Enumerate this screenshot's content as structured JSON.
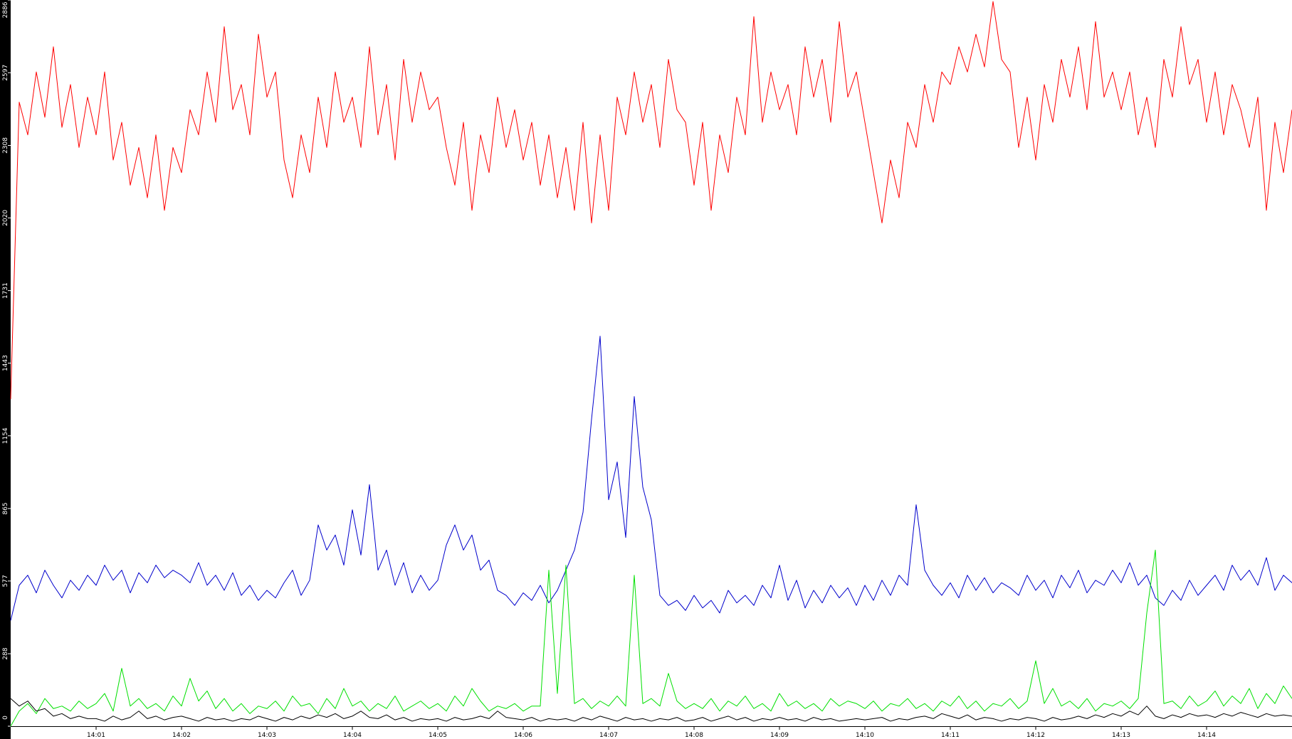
{
  "chart_data": {
    "type": "line",
    "xlim": [
      840,
      855
    ],
    "xticks": [
      {
        "value": 841,
        "label": "14:01"
      },
      {
        "value": 842,
        "label": "14:02"
      },
      {
        "value": 843,
        "label": "14:03"
      },
      {
        "value": 844,
        "label": "14:04"
      },
      {
        "value": 845,
        "label": "14:05"
      },
      {
        "value": 846,
        "label": "14:06"
      },
      {
        "value": 847,
        "label": "14:07"
      },
      {
        "value": 848,
        "label": "14:08"
      },
      {
        "value": 849,
        "label": "14:09"
      },
      {
        "value": 850,
        "label": "14:10"
      },
      {
        "value": 851,
        "label": "14:11"
      },
      {
        "value": 852,
        "label": "14:12"
      },
      {
        "value": 853,
        "label": "14:13"
      },
      {
        "value": 854,
        "label": "14:14"
      }
    ],
    "ylim": [
      0,
      2886
    ],
    "yticks": [
      0,
      288,
      577,
      865,
      1154,
      1443,
      1731,
      2020,
      2308,
      2597,
      2886
    ],
    "x": [
      840.0,
      840.1,
      840.2,
      840.3,
      840.4,
      840.5,
      840.6,
      840.7,
      840.8,
      840.9,
      841.0,
      841.1,
      841.2,
      841.3,
      841.4,
      841.5,
      841.6,
      841.7,
      841.8,
      841.9,
      842.0,
      842.1,
      842.2,
      842.3,
      842.4,
      842.5,
      842.6,
      842.7,
      842.8,
      842.9,
      843.0,
      843.1,
      843.2,
      843.3,
      843.4,
      843.5,
      843.6,
      843.7,
      843.8,
      843.9,
      844.0,
      844.1,
      844.2,
      844.3,
      844.4,
      844.5,
      844.6,
      844.7,
      844.8,
      844.9,
      845.0,
      845.1,
      845.2,
      845.3,
      845.4,
      845.5,
      845.6,
      845.7,
      845.8,
      845.9,
      846.0,
      846.1,
      846.2,
      846.3,
      846.4,
      846.5,
      846.6,
      846.7,
      846.8,
      846.9,
      847.0,
      847.1,
      847.2,
      847.3,
      847.4,
      847.5,
      847.6,
      847.7,
      847.8,
      847.9,
      848.0,
      848.1,
      848.2,
      848.3,
      848.4,
      848.5,
      848.6,
      848.7,
      848.8,
      848.9,
      849.0,
      849.1,
      849.2,
      849.3,
      849.4,
      849.5,
      849.6,
      849.7,
      849.8,
      849.9,
      850.0,
      850.1,
      850.2,
      850.3,
      850.4,
      850.5,
      850.6,
      850.7,
      850.8,
      850.9,
      851.0,
      851.1,
      851.2,
      851.3,
      851.4,
      851.5,
      851.6,
      851.7,
      851.8,
      851.9,
      852.0,
      852.1,
      852.2,
      852.3,
      852.4,
      852.5,
      852.6,
      852.7,
      852.8,
      852.9,
      853.0,
      853.1,
      853.2,
      853.3,
      853.4,
      853.5,
      853.6,
      853.7,
      853.8,
      853.9,
      854.0,
      854.1,
      854.2,
      854.3,
      854.4,
      854.5,
      854.6,
      854.7,
      854.8,
      854.9,
      855.0
    ],
    "series": [
      {
        "color": "#ff0000",
        "values": [
          1300,
          2480,
          2350,
          2600,
          2420,
          2700,
          2380,
          2550,
          2300,
          2500,
          2350,
          2600,
          2250,
          2400,
          2150,
          2300,
          2100,
          2350,
          2050,
          2300,
          2200,
          2450,
          2350,
          2600,
          2400,
          2780,
          2450,
          2550,
          2350,
          2750,
          2500,
          2600,
          2250,
          2100,
          2350,
          2200,
          2500,
          2300,
          2600,
          2400,
          2500,
          2300,
          2700,
          2350,
          2550,
          2250,
          2650,
          2400,
          2600,
          2450,
          2500,
          2300,
          2150,
          2400,
          2050,
          2350,
          2200,
          2500,
          2300,
          2450,
          2250,
          2400,
          2150,
          2350,
          2100,
          2300,
          2050,
          2400,
          2000,
          2350,
          2050,
          2500,
          2350,
          2600,
          2400,
          2550,
          2300,
          2650,
          2450,
          2400,
          2150,
          2400,
          2050,
          2350,
          2200,
          2500,
          2350,
          2820,
          2400,
          2600,
          2450,
          2550,
          2350,
          2700,
          2500,
          2650,
          2400,
          2800,
          2500,
          2600,
          2400,
          2200,
          2000,
          2250,
          2100,
          2400,
          2300,
          2550,
          2400,
          2600,
          2550,
          2700,
          2600,
          2750,
          2620,
          2880,
          2650,
          2600,
          2300,
          2500,
          2250,
          2550,
          2400,
          2650,
          2500,
          2700,
          2450,
          2800,
          2500,
          2600,
          2450,
          2600,
          2350,
          2500,
          2300,
          2650,
          2500,
          2780,
          2550,
          2650,
          2400,
          2600,
          2350,
          2550,
          2450,
          2300,
          2500,
          2050,
          2400,
          2200,
          2450
        ]
      },
      {
        "color": "#0000cc",
        "values": [
          420,
          560,
          600,
          530,
          620,
          560,
          510,
          580,
          540,
          600,
          560,
          640,
          580,
          620,
          530,
          610,
          570,
          640,
          590,
          620,
          600,
          570,
          650,
          560,
          600,
          540,
          610,
          520,
          560,
          500,
          540,
          510,
          570,
          620,
          520,
          580,
          800,
          700,
          760,
          640,
          860,
          680,
          960,
          620,
          700,
          560,
          650,
          530,
          600,
          540,
          580,
          720,
          800,
          700,
          760,
          620,
          660,
          540,
          520,
          480,
          530,
          500,
          560,
          490,
          540,
          620,
          700,
          850,
          1220,
          1550,
          900,
          1050,
          750,
          1310,
          950,
          820,
          520,
          480,
          500,
          460,
          520,
          470,
          500,
          450,
          540,
          490,
          520,
          480,
          560,
          510,
          640,
          500,
          580,
          470,
          540,
          490,
          560,
          510,
          550,
          480,
          560,
          500,
          580,
          520,
          600,
          560,
          880,
          620,
          560,
          520,
          570,
          510,
          600,
          540,
          590,
          530,
          570,
          550,
          520,
          600,
          540,
          580,
          510,
          600,
          550,
          620,
          530,
          580,
          560,
          620,
          570,
          650,
          560,
          600,
          510,
          480,
          540,
          500,
          580,
          520,
          560,
          600,
          540,
          640,
          580,
          620,
          560,
          670,
          540,
          600,
          570
        ]
      },
      {
        "color": "#00e000",
        "values": [
          0,
          60,
          90,
          50,
          110,
          70,
          80,
          60,
          100,
          70,
          90,
          130,
          60,
          230,
          80,
          110,
          70,
          90,
          60,
          120,
          80,
          190,
          100,
          140,
          70,
          110,
          60,
          90,
          50,
          80,
          70,
          100,
          60,
          120,
          80,
          90,
          50,
          110,
          70,
          150,
          80,
          100,
          60,
          90,
          70,
          120,
          60,
          80,
          100,
          70,
          90,
          60,
          120,
          80,
          150,
          100,
          60,
          80,
          70,
          90,
          60,
          80,
          80,
          620,
          130,
          640,
          90,
          110,
          70,
          100,
          80,
          120,
          80,
          600,
          90,
          110,
          80,
          210,
          100,
          70,
          90,
          70,
          110,
          60,
          100,
          80,
          120,
          70,
          90,
          60,
          130,
          80,
          100,
          70,
          90,
          60,
          110,
          80,
          100,
          90,
          70,
          100,
          60,
          90,
          80,
          110,
          70,
          90,
          60,
          100,
          80,
          120,
          70,
          100,
          60,
          90,
          80,
          110,
          70,
          100,
          260,
          90,
          150,
          80,
          100,
          70,
          110,
          60,
          90,
          80,
          100,
          70,
          110,
          450,
          700,
          90,
          100,
          70,
          120,
          80,
          100,
          140,
          80,
          120,
          90,
          150,
          70,
          130,
          90,
          160,
          110
        ]
      },
      {
        "color": "#000000",
        "values": [
          110,
          80,
          100,
          60,
          70,
          40,
          50,
          30,
          40,
          30,
          30,
          20,
          40,
          25,
          35,
          60,
          30,
          40,
          25,
          35,
          40,
          30,
          20,
          35,
          25,
          30,
          20,
          30,
          25,
          40,
          30,
          20,
          35,
          25,
          40,
          30,
          45,
          35,
          50,
          30,
          40,
          60,
          35,
          30,
          45,
          25,
          35,
          20,
          30,
          25,
          30,
          20,
          35,
          25,
          30,
          40,
          30,
          60,
          35,
          30,
          25,
          35,
          20,
          30,
          25,
          30,
          20,
          35,
          25,
          40,
          30,
          20,
          35,
          25,
          30,
          20,
          30,
          25,
          35,
          20,
          25,
          35,
          20,
          30,
          40,
          25,
          35,
          20,
          30,
          25,
          35,
          25,
          30,
          20,
          35,
          25,
          30,
          20,
          25,
          30,
          25,
          30,
          35,
          20,
          30,
          25,
          35,
          40,
          30,
          50,
          40,
          30,
          45,
          25,
          35,
          30,
          20,
          30,
          25,
          35,
          30,
          20,
          35,
          25,
          30,
          40,
          30,
          45,
          35,
          50,
          40,
          60,
          45,
          80,
          40,
          30,
          45,
          35,
          50,
          40,
          45,
          35,
          50,
          40,
          55,
          45,
          35,
          50,
          40,
          45,
          40
        ]
      }
    ]
  }
}
